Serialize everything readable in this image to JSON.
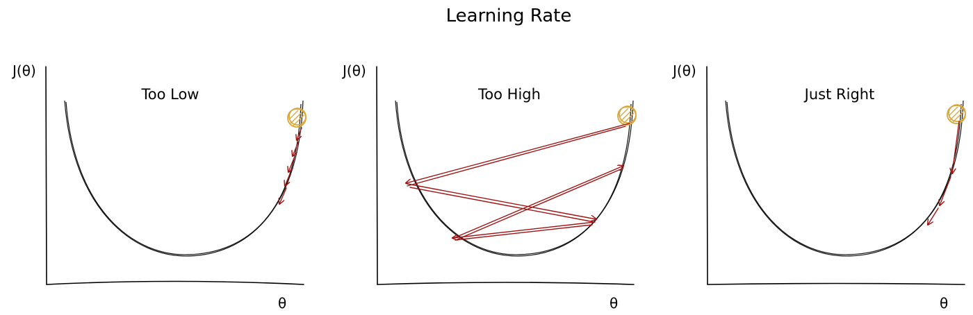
{
  "title": "Learning Rate",
  "axis": {
    "y_label": "J(θ)",
    "x_label": "θ"
  },
  "panels": [
    {
      "label": "Too Low"
    },
    {
      "label": "Too High"
    },
    {
      "label": "Just Right"
    }
  ],
  "colors": {
    "curve": "#111111",
    "arrow": "#a11414",
    "ball": "#d9a83c"
  }
}
